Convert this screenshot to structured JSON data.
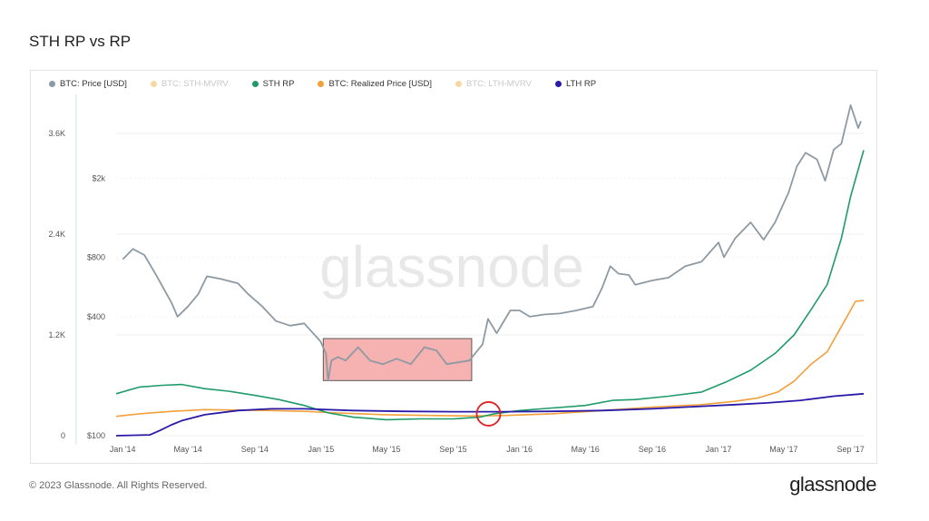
{
  "page": {
    "title": "STH RP vs RP",
    "watermark": "glassnode",
    "copyright": "© 2023 Glassnode. All Rights Reserved.",
    "logo": "glassnode"
  },
  "legend": [
    {
      "label": "BTC: Price [USD]",
      "color": "#8e9aa3",
      "muted": false
    },
    {
      "label": "BTC: STH-MVRV",
      "color": "#f2a53a",
      "muted": true
    },
    {
      "label": "STH RP",
      "color": "#1f9b6a",
      "muted": false
    },
    {
      "label": "BTC: Realized Price [USD]",
      "color": "#f2a03a",
      "muted": false
    },
    {
      "label": "BTC: LTH-MVRV",
      "color": "#f2a53a",
      "muted": true
    },
    {
      "label": "LTH RP",
      "color": "#2a1aa8",
      "muted": false
    }
  ],
  "colors": {
    "price": "#8e9aa3",
    "sth_rp": "#1f9b6a",
    "realized_price": "#f2a03a",
    "lth_rp": "#2a1aa8",
    "highlight_fill": "#f5a3a3",
    "highlight_stroke": "#5a5a5a",
    "circle": "#e02020",
    "grid": "#eeeeee",
    "axis_text": "#555555"
  },
  "chart_data": {
    "type": "line",
    "x_range": [
      "2013-12-20",
      "2017-09-25"
    ],
    "x_ticks": [
      "Jan '14",
      "May '14",
      "Sep '14",
      "Jan '15",
      "May '15",
      "Sep '15",
      "Jan '16",
      "May '16",
      "Sep '16",
      "Jan '17",
      "May '17",
      "Sep '17"
    ],
    "y_left_ticks": [
      "0",
      "1.2K",
      "2.4K",
      "3.6K"
    ],
    "y_left_range": [
      0,
      4000
    ],
    "y_right_ticks": [
      "$100",
      "$400",
      "$800",
      "$2k"
    ],
    "y_right_log": true,
    "grid": true,
    "legend_position": "top-left",
    "series": [
      {
        "name": "BTC: Price [USD]",
        "axis": "right-log",
        "x": [
          "2014-01-01",
          "2014-01-20",
          "2014-02-10",
          "2014-03-05",
          "2014-04-01",
          "2014-04-12",
          "2014-05-01",
          "2014-05-20",
          "2014-06-05",
          "2014-07-01",
          "2014-08-01",
          "2014-08-20",
          "2014-09-15",
          "2014-10-10",
          "2014-11-05",
          "2014-12-01",
          "2014-12-31",
          "2015-01-10",
          "2015-01-14",
          "2015-01-20",
          "2015-02-01",
          "2015-02-15",
          "2015-03-10",
          "2015-04-01",
          "2015-04-25",
          "2015-05-20",
          "2015-06-15",
          "2015-07-10",
          "2015-08-01",
          "2015-08-20",
          "2015-09-10",
          "2015-10-01",
          "2015-10-25",
          "2015-11-04",
          "2015-11-20",
          "2015-12-15",
          "2016-01-01",
          "2016-01-20",
          "2016-02-15",
          "2016-03-15",
          "2016-04-15",
          "2016-05-15",
          "2016-06-01",
          "2016-06-16",
          "2016-07-01",
          "2016-07-20",
          "2016-08-01",
          "2016-09-01",
          "2016-10-01",
          "2016-11-01",
          "2016-12-01",
          "2017-01-01",
          "2017-01-11",
          "2017-02-01",
          "2017-03-01",
          "2017-03-25",
          "2017-04-15",
          "2017-05-10",
          "2017-05-25",
          "2017-06-10",
          "2017-07-01",
          "2017-07-16",
          "2017-08-01",
          "2017-08-15",
          "2017-09-01",
          "2017-09-15",
          "2017-09-20"
        ],
        "y": [
          780,
          880,
          820,
          640,
          470,
          400,
          450,
          520,
          640,
          620,
          590,
          520,
          450,
          380,
          360,
          370,
          300,
          260,
          190,
          240,
          250,
          240,
          280,
          240,
          230,
          245,
          230,
          280,
          270,
          230,
          235,
          240,
          290,
          390,
          330,
          430,
          430,
          400,
          410,
          415,
          430,
          450,
          560,
          720,
          660,
          650,
          580,
          610,
          630,
          720,
          760,
          950,
          800,
          1000,
          1200,
          980,
          1200,
          1700,
          2300,
          2700,
          2500,
          1950,
          2800,
          3000,
          4700,
          3600,
          3900
        ]
      },
      {
        "name": "STH RP",
        "axis": "left",
        "x": [
          "2013-12-20",
          "2014-02-01",
          "2014-03-15",
          "2014-04-20",
          "2014-06-01",
          "2014-07-15",
          "2014-09-01",
          "2014-10-15",
          "2014-12-01",
          "2015-01-15",
          "2015-03-01",
          "2015-05-01",
          "2015-07-01",
          "2015-09-01",
          "2015-10-20",
          "2015-11-15",
          "2016-01-01",
          "2016-03-01",
          "2016-05-01",
          "2016-06-20",
          "2016-08-01",
          "2016-10-01",
          "2016-12-01",
          "2017-01-15",
          "2017-03-01",
          "2017-04-15",
          "2017-05-20",
          "2017-06-20",
          "2017-07-20",
          "2017-08-15",
          "2017-09-01",
          "2017-09-25"
        ],
        "y": [
          500,
          580,
          600,
          610,
          560,
          530,
          480,
          430,
          360,
          270,
          220,
          190,
          200,
          200,
          220,
          260,
          300,
          330,
          360,
          420,
          430,
          470,
          520,
          640,
          780,
          980,
          1200,
          1500,
          1800,
          2350,
          2850,
          3400
        ]
      },
      {
        "name": "BTC: Realized Price [USD]",
        "axis": "left",
        "x": [
          "2013-12-20",
          "2014-02-01",
          "2014-04-01",
          "2014-06-01",
          "2014-08-01",
          "2014-10-01",
          "2014-12-01",
          "2015-02-01",
          "2015-05-01",
          "2015-08-01",
          "2015-10-01",
          "2015-12-01",
          "2016-03-01",
          "2016-06-01",
          "2016-09-01",
          "2016-12-01",
          "2017-02-01",
          "2017-03-15",
          "2017-04-20",
          "2017-05-20",
          "2017-06-20",
          "2017-07-20",
          "2017-08-15",
          "2017-09-10",
          "2017-09-25"
        ],
        "y": [
          230,
          260,
          290,
          310,
          305,
          300,
          290,
          270,
          250,
          240,
          235,
          240,
          260,
          300,
          340,
          370,
          410,
          450,
          520,
          650,
          850,
          1000,
          1300,
          1600,
          1610
        ]
      },
      {
        "name": "LTH RP",
        "axis": "left",
        "x": [
          "2013-12-20",
          "2014-02-20",
          "2014-03-10",
          "2014-04-01",
          "2014-04-20",
          "2014-06-01",
          "2014-08-01",
          "2014-10-01",
          "2014-12-01",
          "2015-03-01",
          "2015-06-01",
          "2015-09-01",
          "2015-12-01",
          "2016-03-01",
          "2016-06-01",
          "2016-09-01",
          "2016-12-01",
          "2017-02-01",
          "2017-04-01",
          "2017-06-01",
          "2017-08-01",
          "2017-09-25"
        ],
        "y": [
          0,
          10,
          60,
          130,
          180,
          250,
          300,
          320,
          320,
          300,
          290,
          285,
          285,
          290,
          300,
          320,
          350,
          370,
          390,
          420,
          470,
          500
        ]
      }
    ],
    "annotations": [
      {
        "type": "box",
        "x": [
          "2015-01-05",
          "2015-10-05"
        ],
        "y_right": [
          190,
          310
        ]
      },
      {
        "type": "circle",
        "x": "2015-11-05",
        "y_left": 260
      }
    ]
  }
}
